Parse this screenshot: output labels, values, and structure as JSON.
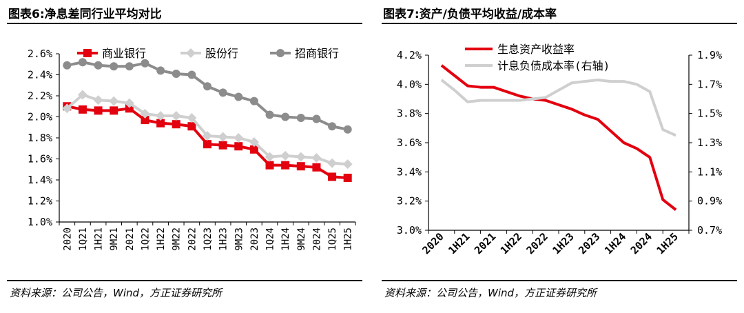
{
  "charts": [
    {
      "title": "图表6:净息差同行业平均对比",
      "source": "资料来源：公司公告，Wind，方正证券研究所",
      "chart_data": {
        "type": "line",
        "categories": [
          "2020",
          "1Q21",
          "1H21",
          "9M21",
          "2021",
          "1Q22",
          "1H22",
          "9M22",
          "2022",
          "1Q23",
          "1H23",
          "9M23",
          "2023",
          "1Q24",
          "1H24",
          "9M24",
          "2024",
          "1Q25",
          "1H25"
        ],
        "ylim": [
          1.0,
          2.6
        ],
        "yticks": [
          1.0,
          1.2,
          1.4,
          1.6,
          1.8,
          2.0,
          2.2,
          2.4,
          2.6
        ],
        "ytick_labels": [
          "1.0%",
          "1.2%",
          "1.4%",
          "1.6%",
          "1.8%",
          "2.0%",
          "2.2%",
          "2.4%",
          "2.6%"
        ],
        "legend_position": "top",
        "series": [
          {
            "name": "商业银行",
            "color": "#e3000f",
            "marker": "square",
            "values": [
              2.1,
              2.07,
              2.06,
              2.06,
              2.08,
              1.97,
              1.94,
              1.93,
              1.91,
              1.74,
              1.73,
              1.72,
              1.69,
              1.54,
              1.54,
              1.53,
              1.52,
              1.43,
              1.42
            ]
          },
          {
            "name": "股份行",
            "color": "#cfcfcf",
            "marker": "diamond",
            "values": [
              2.08,
              2.21,
              2.16,
              2.15,
              2.13,
              2.03,
              2.01,
              2.01,
              1.99,
              1.82,
              1.81,
              1.8,
              1.76,
              1.62,
              1.63,
              1.62,
              1.61,
              1.56,
              1.55
            ]
          },
          {
            "name": "招商银行",
            "color": "#8c8c8c",
            "marker": "circle",
            "values": [
              2.49,
              2.52,
              2.49,
              2.48,
              2.48,
              2.51,
              2.44,
              2.41,
              2.4,
              2.29,
              2.23,
              2.19,
              2.15,
              2.02,
              2.0,
              1.99,
              1.98,
              1.91,
              1.88
            ]
          }
        ]
      }
    },
    {
      "title": "图表7:资产/负债平均收益/成本率",
      "source": "资料来源：公司公告，Wind，方正证券研究所",
      "chart_data": {
        "type": "line",
        "categories": [
          "2020",
          "1H21",
          "2021",
          "1H22",
          "2022",
          "1H23",
          "2023",
          "1H24",
          "2024",
          "1H25"
        ],
        "legend_position": "top",
        "y_left": {
          "ylim": [
            3.0,
            4.2
          ],
          "ticks": [
            3.0,
            3.2,
            3.4,
            3.6,
            3.8,
            4.0,
            4.2
          ],
          "labels": [
            "3.0%",
            "3.2%",
            "3.4%",
            "3.6%",
            "3.8%",
            "4.0%",
            "4.2%"
          ]
        },
        "y_right": {
          "ylim": [
            0.7,
            1.9
          ],
          "ticks": [
            0.7,
            0.9,
            1.1,
            1.3,
            1.5,
            1.7,
            1.9
          ],
          "labels": [
            "0.7%",
            "0.9%",
            "1.1%",
            "1.3%",
            "1.5%",
            "1.7%",
            "1.9%"
          ]
        },
        "series": [
          {
            "name": "生息资产收益率",
            "axis": "left",
            "color": "#e3000f",
            "x": [
              0,
              0.5,
              1,
              1.5,
              2,
              2.5,
              3,
              3.5,
              4,
              4.5,
              5,
              5.5,
              6,
              6.5,
              7,
              7.5,
              8,
              8.5,
              9
            ],
            "values": [
              4.13,
              4.06,
              3.99,
              3.98,
              3.98,
              3.95,
              3.92,
              3.9,
              3.89,
              3.86,
              3.83,
              3.79,
              3.76,
              3.68,
              3.6,
              3.56,
              3.5,
              3.21,
              3.14
            ]
          },
          {
            "name": "计息负债成本率(右轴)",
            "axis": "right",
            "color": "#cfcfcf",
            "x": [
              0,
              0.5,
              1,
              1.5,
              2,
              2.5,
              3,
              3.5,
              4,
              4.5,
              5,
              5.5,
              6,
              6.5,
              7,
              7.5,
              8,
              8.5,
              9
            ],
            "values": [
              1.73,
              1.66,
              1.58,
              1.59,
              1.59,
              1.59,
              1.59,
              1.6,
              1.61,
              1.66,
              1.71,
              1.72,
              1.73,
              1.72,
              1.72,
              1.7,
              1.65,
              1.39,
              1.35
            ]
          }
        ]
      }
    }
  ]
}
